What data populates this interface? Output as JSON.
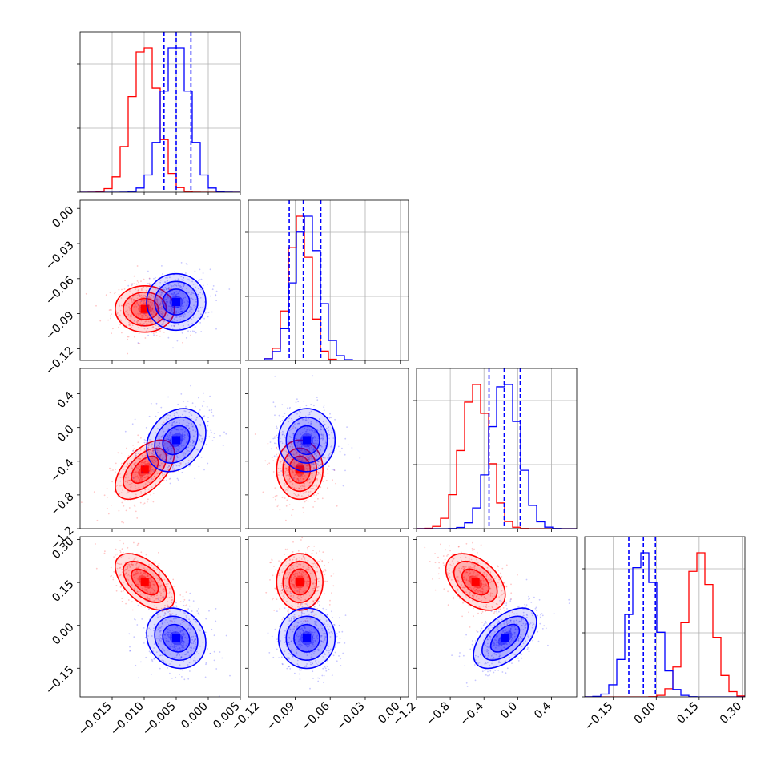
{
  "chart_data": {
    "type": "corner",
    "grid": true,
    "parameters": [
      {
        "range": [
          -0.02,
          0.005
        ],
        "ticks": [
          "−0.015",
          "−0.010",
          "−0.005",
          "0.000",
          "0.005"
        ],
        "tick_values": [
          -0.015,
          -0.01,
          -0.005,
          0.0,
          0.005
        ]
      },
      {
        "range": [
          -0.13,
          0.007
        ],
        "ticks": [
          "−0.12",
          "−0.09",
          "−0.06",
          "−0.03",
          "0.00"
        ],
        "tick_values": [
          -0.12,
          -0.09,
          -0.06,
          -0.03,
          0.0
        ]
      },
      {
        "range": [
          -1.2,
          0.7
        ],
        "ticks": [
          "−1.2",
          "−0.8",
          "−0.4",
          "0.0",
          "0.4"
        ],
        "tick_values": [
          -1.2,
          -0.8,
          -0.4,
          0.0,
          0.4
        ]
      },
      {
        "range": [
          -0.25,
          0.31
        ],
        "ticks": [
          "−0.15",
          "0.00",
          "0.15",
          "0.30"
        ],
        "tick_values": [
          -0.15,
          0.0,
          0.15,
          0.3
        ]
      }
    ],
    "series": [
      {
        "color": "#ff0000",
        "means": [
          -0.0099,
          -0.086,
          -0.5,
          0.152
        ],
        "sigmas": [
          0.0021,
          0.009,
          0.16,
          0.045
        ],
        "correlations": {
          "0_1": 0.0,
          "0_2": 0.55,
          "0_3": -0.55,
          "1_2": 0.0,
          "1_3": 0.0,
          "2_3": -0.45
        },
        "quantile_lines": []
      },
      {
        "color": "#0000ff",
        "means": [
          -0.005,
          -0.08,
          -0.15,
          -0.045
        ],
        "sigmas": [
          0.0021,
          0.011,
          0.17,
          0.048
        ],
        "correlations": {
          "0_1": 0.0,
          "0_2": 0.25,
          "0_3": -0.15,
          "1_2": 0.0,
          "1_3": 0.0,
          "2_3": 0.55
        },
        "quantile_lines": [
          [
            -0.0069,
            -0.005,
            -0.0027
          ],
          [
            -0.095,
            -0.083,
            -0.068
          ],
          [
            -0.34,
            -0.16,
            0.03
          ],
          [
            -0.096,
            -0.045,
            -0.003
          ]
        ]
      }
    ]
  }
}
